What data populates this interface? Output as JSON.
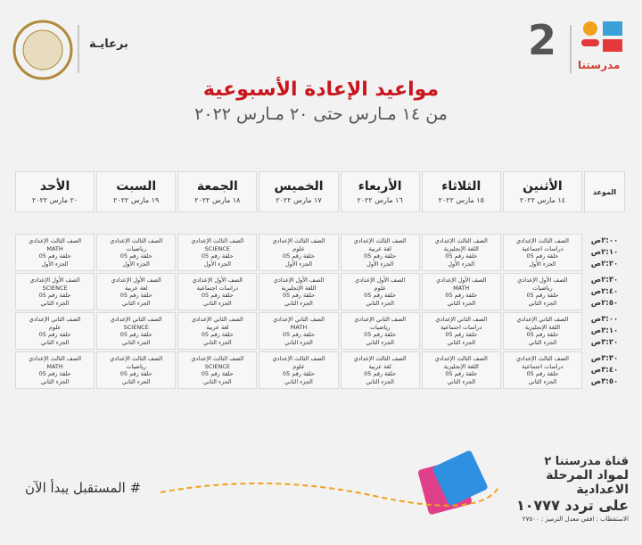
{
  "header": {
    "sponsor": "برعايـة",
    "brand": "مدرستنا",
    "channel_number": "2"
  },
  "title": "مواعيد الإعادة الأسبوعية",
  "subtitle": "من ١٤ مـارس حتى ٢٠ مـارس ٢٠٢٢",
  "table": {
    "time_header": "الموعد",
    "days": [
      {
        "day": "الأثنين",
        "date": "١٤ مارس ٢٠٢٢"
      },
      {
        "day": "الثلاثاء",
        "date": "١٥ مارس ٢٠٢٢"
      },
      {
        "day": "الأربعاء",
        "date": "١٦ مارس ٢٠٢٢"
      },
      {
        "day": "الخميس",
        "date": "١٧ مارس ٢٠٢٢"
      },
      {
        "day": "الجمعة",
        "date": "١٨ مارس ٢٠٢٢"
      },
      {
        "day": "السبت",
        "date": "١٩ مارس ٢٠٢٢"
      },
      {
        "day": "الأحد",
        "date": "٢٠ مارس ٢٠٢٢"
      }
    ],
    "rows": [
      {
        "times": [
          "٢:٠٠ص",
          "٢:١٠ص",
          "٢:٢٠ص"
        ],
        "cells": [
          [
            "الصف الثالث الإعدادي",
            "دراسات اجتماعية",
            "حلقة رقم 05",
            "الجزء الأول"
          ],
          [
            "الصف الثالث الإعدادي",
            "اللغة الإنجليزية",
            "حلقة رقم 05",
            "الجزء الأول"
          ],
          [
            "الصف الثالث الإعدادي",
            "لغة عربية",
            "حلقة رقم 05",
            "الجزء الأول"
          ],
          [
            "الصف الثالث الإعدادي",
            "علوم",
            "حلقة رقم 05",
            "الجزء الأول"
          ],
          [
            "الصف الثالث الإعدادي",
            "SCIENCE",
            "حلقة رقم 05",
            "الجزء الأول"
          ],
          [
            "الصف الثالث الإعدادي",
            "رياضيات",
            "حلقة رقم 05",
            "الجزء الأول"
          ],
          [
            "الصف الثالث الإعدادي",
            "MATH",
            "حلقة رقم 05",
            "الجزء الأول"
          ]
        ]
      },
      {
        "times": [
          "٢:٣٠ص",
          "٢:٤٠ص",
          "٢:٥٠ص"
        ],
        "cells": [
          [
            "الصف الأول الإعدادي",
            "رياضيات",
            "حلقة رقم 05",
            "الجزء الثاني"
          ],
          [
            "الصف الأول الإعدادي",
            "MATH",
            "حلقة رقم 05",
            "الجزء الثاني"
          ],
          [
            "الصف الأول الإعدادي",
            "علوم",
            "حلقة رقم 05",
            "الجزء الثاني"
          ],
          [
            "الصف الأول الإعدادي",
            "اللغة الإنجليزية",
            "حلقة رقم 05",
            "الجزء الثاني"
          ],
          [
            "الصف الأول الإعدادي",
            "دراسات اجتماعية",
            "حلقة رقم 05",
            "الجزء الثاني"
          ],
          [
            "الصف الأول الإعدادي",
            "لغة عربية",
            "حلقة رقم 05",
            "الجزء الثاني"
          ],
          [
            "الصف الأول الإعدادي",
            "SCIENCE",
            "حلقة رقم 05",
            "الجزء الثاني"
          ]
        ]
      },
      {
        "times": [
          "٣:٠٠ص",
          "٣:١٠ص",
          "٣:٢٠ص"
        ],
        "cells": [
          [
            "الصف الثاني الإعدادي",
            "اللغة الإنجليزية",
            "حلقة رقم 05",
            "الجزء الثاني"
          ],
          [
            "الصف الثاني الإعدادي",
            "دراسات اجتماعية",
            "حلقة رقم 05",
            "الجزء الثاني"
          ],
          [
            "الصف الثاني الإعدادي",
            "رياضيات",
            "حلقة رقم 05",
            "الجزء الثاني"
          ],
          [
            "الصف الثاني الإعدادي",
            "MATH",
            "حلقة رقم 05",
            "الجزء الثاني"
          ],
          [
            "الصف الثاني الإعدادي",
            "لغة عربية",
            "حلقة رقم 05",
            "الجزء الثاني"
          ],
          [
            "الصف الثاني الإعدادي",
            "SCIENCE",
            "حلقة رقم 05",
            "الجزء الثاني"
          ],
          [
            "الصف الثاني الإعدادي",
            "علوم",
            "حلقة رقم 05",
            "الجزء الثاني"
          ]
        ]
      },
      {
        "times": [
          "٣:٣٠ص",
          "٣:٤٠ص",
          "٣:٥٠ص"
        ],
        "cells": [
          [
            "الصف الثالث الإعدادي",
            "دراسات اجتماعية",
            "حلقة رقم 05",
            "الجزء الثاني"
          ],
          [
            "الصف الثالث الإعدادي",
            "اللغة الإنجليزية",
            "حلقة رقم 05",
            "الجزء الثاني"
          ],
          [
            "الصف الثالث الإعدادي",
            "لغة عربية",
            "حلقة رقم 05",
            "الجزء الثاني"
          ],
          [
            "الصف الثالث الإعدادي",
            "علوم",
            "حلقة رقم 05",
            "الجزء الثاني"
          ],
          [
            "الصف الثالث الإعدادي",
            "SCIENCE",
            "حلقة رقم 05",
            "الجزء الثاني"
          ],
          [
            "الصف الثالث الإعدادي",
            "رياضيات",
            "حلقة رقم 05",
            "الجزء الثاني"
          ],
          [
            "الصف الثالث الإعدادي",
            "MATH",
            "حلقة رقم 05",
            "الجزء الثاني"
          ]
        ]
      }
    ]
  },
  "footer": {
    "slogan": "# المستقبل يبدأ الآن",
    "channel": [
      "قناة مدرستنا ٢",
      "لمواد المرحلة الاعدادية",
      "على تردد ١٠٧٧٧",
      "الاستقطاب : افقي معدل الترميز : ٢٧٥٠٠"
    ]
  }
}
